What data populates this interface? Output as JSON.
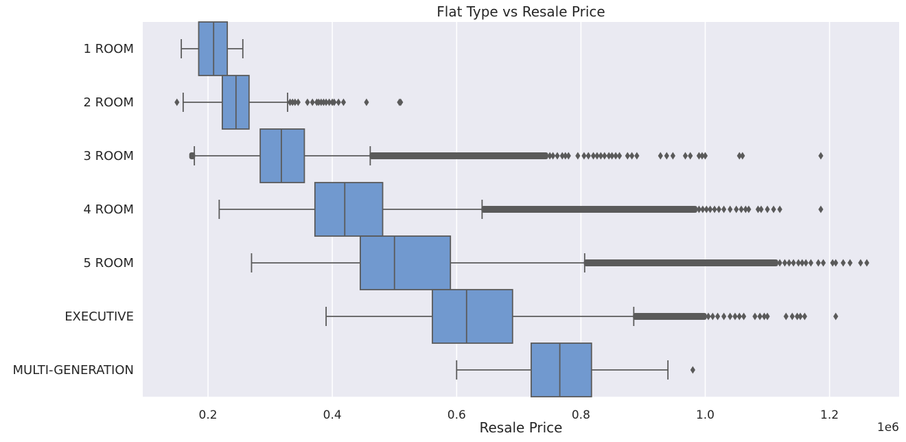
{
  "chart_data": {
    "type": "boxplot",
    "orientation": "horizontal",
    "title": "Flat Type vs Resale Price",
    "xlabel": "Resale Price",
    "ylabel": "",
    "x_offset_label": "1e6",
    "xlim": [
      0.095,
      1.312
    ],
    "x_ticks": [
      0.2,
      0.4,
      0.6,
      0.8,
      1.0,
      1.2
    ],
    "x_tick_labels": [
      "0.2",
      "0.4",
      "0.6",
      "0.8",
      "1.0",
      "1.2"
    ],
    "grid": true,
    "colors": {
      "box": "#7199cf",
      "line": "#5a5a5a",
      "background": "#eaeaf2",
      "grid": "#ffffff"
    },
    "categories": [
      "1 ROOM",
      "2 ROOM",
      "3 ROOM",
      "4 ROOM",
      "5 ROOM",
      "EXECUTIVE",
      "MULTI-GENERATION"
    ],
    "boxes": [
      {
        "category": "1 ROOM",
        "whisker_low": 0.157,
        "q1": 0.185,
        "median": 0.209,
        "q3": 0.231,
        "whisker_high": 0.256,
        "outliers": []
      },
      {
        "category": "2 ROOM",
        "whisker_low": 0.16,
        "q1": 0.223,
        "median": 0.245,
        "q3": 0.266,
        "whisker_high": 0.328,
        "outliers": [
          0.15,
          0.332,
          0.336,
          0.34,
          0.345,
          0.36,
          0.368,
          0.375,
          0.378,
          0.382,
          0.386,
          0.39,
          0.395,
          0.4,
          0.403,
          0.41,
          0.418,
          0.455,
          0.508,
          0.51
        ]
      },
      {
        "category": "3 ROOM",
        "whisker_low": 0.178,
        "q1": 0.284,
        "median": 0.318,
        "q3": 0.355,
        "whisker_high": 0.461,
        "outliers_dense_ranges": [
          [
            0.172,
            0.177
          ],
          [
            0.462,
            0.745
          ]
        ],
        "outliers": [
          0.75,
          0.755,
          0.762,
          0.77,
          0.775,
          0.78,
          0.795,
          0.805,
          0.812,
          0.82,
          0.826,
          0.832,
          0.838,
          0.845,
          0.85,
          0.856,
          0.862,
          0.875,
          0.882,
          0.89,
          0.928,
          0.938,
          0.948,
          0.968,
          0.976,
          0.99,
          0.995,
          1.0,
          1.055,
          1.06,
          1.186
        ]
      },
      {
        "category": "4 ROOM",
        "whisker_low": 0.218,
        "q1": 0.372,
        "median": 0.42,
        "q3": 0.481,
        "whisker_high": 0.641,
        "outliers_dense_ranges": [
          [
            0.642,
            0.985
          ]
        ],
        "outliers": [
          0.99,
          0.996,
          1.002,
          1.008,
          1.015,
          1.022,
          1.03,
          1.04,
          1.05,
          1.058,
          1.065,
          1.07,
          1.085,
          1.09,
          1.1,
          1.11,
          1.12,
          1.186
        ]
      },
      {
        "category": "5 ROOM",
        "whisker_low": 0.27,
        "q1": 0.445,
        "median": 0.5,
        "q3": 0.59,
        "whisker_high": 0.806,
        "outliers_dense_ranges": [
          [
            0.807,
            1.115
          ]
        ],
        "outliers": [
          1.12,
          1.128,
          1.135,
          1.142,
          1.15,
          1.156,
          1.162,
          1.17,
          1.182,
          1.19,
          1.205,
          1.21,
          1.222,
          1.233,
          1.25,
          1.26
        ]
      },
      {
        "category": "EXECUTIVE",
        "whisker_low": 0.39,
        "q1": 0.561,
        "median": 0.616,
        "q3": 0.69,
        "whisker_high": 0.885,
        "outliers_dense_ranges": [
          [
            0.886,
            1.0
          ]
        ],
        "outliers": [
          1.005,
          1.012,
          1.02,
          1.03,
          1.04,
          1.048,
          1.055,
          1.062,
          1.08,
          1.088,
          1.095,
          1.1,
          1.13,
          1.14,
          1.148,
          1.153,
          1.16,
          1.21
        ]
      },
      {
        "category": "MULTI-GENERATION",
        "whisker_low": 0.6,
        "q1": 0.72,
        "median": 0.766,
        "q3": 0.817,
        "whisker_high": 0.94,
        "outliers": [
          0.98
        ]
      }
    ]
  }
}
